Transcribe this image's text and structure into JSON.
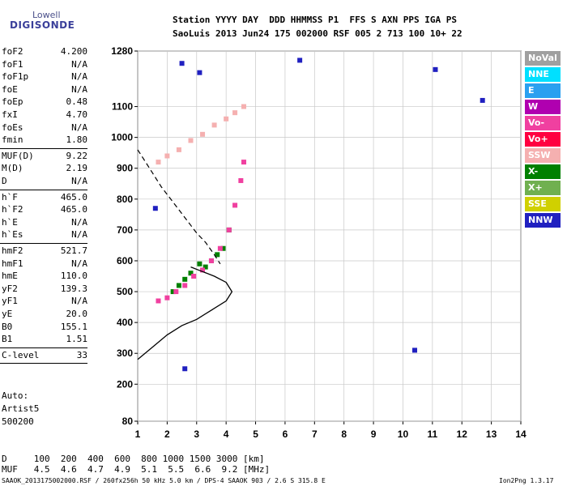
{
  "brand": {
    "line1": "Lowell",
    "line2": "DIGISONDE"
  },
  "header": {
    "row1": "Station YYYY DAY  DDD HHMMSS P1  FFS S AXN PPS IGA PS",
    "row2": "SaoLuis 2013 Jun24 175 002000 RSF 005 2 713 100 10+ 22"
  },
  "params_group1": [
    {
      "label": "foF2",
      "value": "4.200"
    },
    {
      "label": "foF1",
      "value": "N/A"
    },
    {
      "label": "foF1p",
      "value": "N/A"
    },
    {
      "label": "foE",
      "value": "N/A"
    },
    {
      "label": "foEp",
      "value": "0.48"
    },
    {
      "label": "fxI",
      "value": "4.70"
    },
    {
      "label": "foEs",
      "value": "N/A"
    },
    {
      "label": "fmin",
      "value": "1.80"
    }
  ],
  "params_group2": [
    {
      "label": "MUF(D)",
      "value": "9.22"
    },
    {
      "label": "M(D)",
      "value": "2.19"
    },
    {
      "label": "D",
      "value": "N/A"
    }
  ],
  "params_group3": [
    {
      "label": "h`F",
      "value": "465.0"
    },
    {
      "label": "h`F2",
      "value": "465.0"
    },
    {
      "label": "h`E",
      "value": "N/A"
    },
    {
      "label": "h`Es",
      "value": "N/A"
    }
  ],
  "params_group4": [
    {
      "label": "hmF2",
      "value": "521.7"
    },
    {
      "label": "hmF1",
      "value": "N/A"
    },
    {
      "label": "hmE",
      "value": "110.0"
    },
    {
      "label": "yF2",
      "value": "139.3"
    },
    {
      "label": "yF1",
      "value": "N/A"
    },
    {
      "label": "yE",
      "value": "20.0"
    },
    {
      "label": "B0",
      "value": "155.1"
    },
    {
      "label": "B1",
      "value": "1.51"
    }
  ],
  "params_group5": [
    {
      "label": "C-level",
      "value": "33"
    }
  ],
  "notes": {
    "auto": "Auto:",
    "artist": "Artist5",
    "version": "500200"
  },
  "muf_table": {
    "row1": "D     100  200  400  600  800 1000 1500 3000 [km]",
    "row2": "MUF   4.5  4.6  4.7  4.9  5.1  5.5  6.6  9.2 [MHz]"
  },
  "footer": {
    "left": "SAAOK_2013175002000.RSF / 260fx256h 50 kHz 5.0 km / DPS-4 SAAOK 903 / 2.6 S 315.8 E",
    "right": "Ion2Png 1.3.17"
  },
  "legend": [
    {
      "label": "NoVal",
      "color": "#a0a0a0"
    },
    {
      "label": "NNE",
      "color": "#00e0ff"
    },
    {
      "label": "E",
      "color": "#2aa0f0"
    },
    {
      "label": "W",
      "color": "#b000b0"
    },
    {
      "label": "Vo-",
      "color": "#f040a0"
    },
    {
      "label": "Vo+",
      "color": "#ff0040"
    },
    {
      "label": "SSW",
      "color": "#f5b0b0"
    },
    {
      "label": "X-",
      "color": "#008000"
    },
    {
      "label": "X+",
      "color": "#70b050"
    },
    {
      "label": "SSE",
      "color": "#d0d000"
    },
    {
      "label": "NNW",
      "color": "#2020c0"
    }
  ],
  "chart_data": {
    "type": "scatter",
    "xlim": [
      1,
      14
    ],
    "ylim": [
      80,
      1280
    ],
    "x_ticks": [
      1,
      2,
      3,
      4,
      5,
      6,
      7,
      8,
      9,
      10,
      11,
      12,
      13,
      14
    ],
    "x_tick_labels": [
      "1",
      "2",
      "3",
      "4",
      "5",
      "6",
      "7",
      "8",
      "9",
      "10",
      "11",
      "12",
      "13",
      "14"
    ],
    "y_ticks": [
      80,
      200,
      300,
      400,
      500,
      600,
      700,
      800,
      900,
      1000,
      1100,
      1280
    ],
    "y_tick_labels": [
      "80",
      "200",
      "300",
      "400",
      "500",
      "600",
      "700",
      "800",
      "900",
      "1000",
      "1100",
      "1280"
    ],
    "grid": true,
    "legend_placement": "right",
    "series": [
      {
        "name": "X-",
        "color": "#008000",
        "points": [
          [
            2.4,
            520
          ],
          [
            2.8,
            560
          ],
          [
            3.1,
            590
          ],
          [
            3.5,
            600
          ],
          [
            3.9,
            640
          ],
          [
            2.6,
            540
          ],
          [
            3.3,
            580
          ],
          [
            4.1,
            700
          ],
          [
            2.2,
            500
          ],
          [
            3.7,
            620
          ]
        ]
      },
      {
        "name": "Vo-",
        "color": "#f040a0",
        "points": [
          [
            1.7,
            470
          ],
          [
            2.0,
            480
          ],
          [
            2.3,
            500
          ],
          [
            2.6,
            520
          ],
          [
            2.9,
            550
          ],
          [
            3.2,
            570
          ],
          [
            3.5,
            600
          ],
          [
            3.8,
            640
          ],
          [
            4.1,
            700
          ],
          [
            4.3,
            780
          ],
          [
            4.5,
            860
          ],
          [
            4.6,
            920
          ]
        ]
      },
      {
        "name": "SSW",
        "color": "#f5b0b0",
        "points": [
          [
            1.7,
            920
          ],
          [
            2.0,
            940
          ],
          [
            2.4,
            960
          ],
          [
            2.8,
            990
          ],
          [
            3.2,
            1010
          ],
          [
            3.6,
            1040
          ],
          [
            4.0,
            1060
          ],
          [
            4.3,
            1080
          ],
          [
            4.6,
            1100
          ]
        ]
      },
      {
        "name": "NNW",
        "color": "#2020c0",
        "points": [
          [
            1.6,
            770
          ],
          [
            2.5,
            1240
          ],
          [
            2.6,
            250
          ],
          [
            3.1,
            1210
          ],
          [
            6.5,
            1250
          ],
          [
            10.4,
            310
          ],
          [
            11.1,
            1220
          ],
          [
            12.7,
            1120
          ]
        ]
      }
    ],
    "profile_curve": [
      [
        1.0,
        280
      ],
      [
        1.5,
        320
      ],
      [
        2.0,
        360
      ],
      [
        2.5,
        390
      ],
      [
        3.0,
        410
      ],
      [
        3.5,
        440
      ],
      [
        4.0,
        470
      ],
      [
        4.2,
        500
      ],
      [
        4.0,
        530
      ],
      [
        3.6,
        550
      ],
      [
        3.2,
        565
      ],
      [
        2.8,
        580
      ]
    ],
    "dashed_curve": [
      [
        1.0,
        960
      ],
      [
        1.4,
        900
      ],
      [
        1.8,
        840
      ],
      [
        2.2,
        790
      ],
      [
        2.6,
        740
      ],
      [
        3.0,
        690
      ],
      [
        3.3,
        660
      ],
      [
        3.6,
        620
      ],
      [
        3.8,
        590
      ]
    ]
  }
}
